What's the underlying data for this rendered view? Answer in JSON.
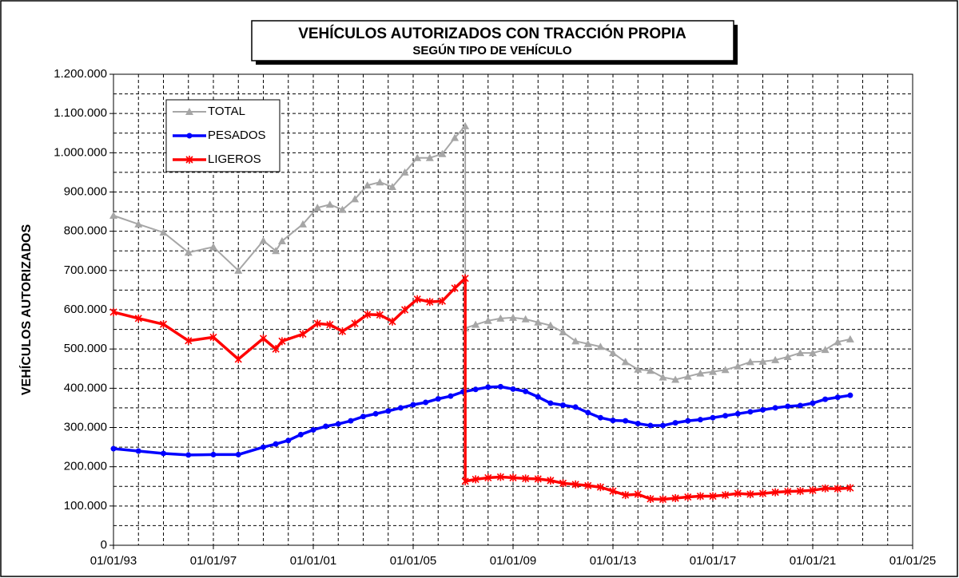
{
  "chart_data": {
    "type": "line",
    "title": "VEHÍCULOS AUTORIZADOS CON TRACCIÓN PROPIA",
    "subtitle": "SEGÚN TIPO DE VEHÍCULO",
    "y_label": "VEHÍCULOS  AUTORIZADOS",
    "xlim": [
      "01/01/93",
      "01/01/25"
    ],
    "xticks": [
      "01/01/93",
      "01/01/97",
      "01/01/01",
      "01/01/05",
      "01/01/09",
      "01/01/13",
      "01/01/17",
      "01/01/21",
      "01/01/25"
    ],
    "ylim": [
      0,
      1200000
    ],
    "yticks": [
      0,
      {
        "value": 100000,
        "label": "100.000"
      },
      {
        "value": 200000,
        "label": "200.000"
      },
      {
        "value": 300000,
        "label": "300.000"
      },
      {
        "value": 400000,
        "label": "400.000"
      },
      {
        "value": 500000,
        "label": "500.000"
      },
      {
        "value": 600000,
        "label": "600.000"
      },
      {
        "value": 700000,
        "label": "700.000"
      },
      {
        "value": 800000,
        "label": "800.000"
      },
      {
        "value": 900000,
        "label": "900.000"
      },
      {
        "value": 1000000,
        "label": "1.000.000"
      },
      {
        "value": 1100000,
        "label": "1.100.000"
      },
      {
        "value": 1200000,
        "label": "1.200.000"
      }
    ],
    "grid": true,
    "legend": "upper left",
    "series": [
      {
        "name": "TOTAL",
        "color": "#a6a6a6",
        "marker": "triangle",
        "x": [
          "01/01/93",
          "01/01/94",
          "01/01/95",
          "01/01/96",
          "01/01/97",
          "01/01/98",
          "01/01/99",
          "01/07/99",
          "01/10/99",
          "01/08/00",
          "01/03/01",
          "01/09/01",
          "01/03/02",
          "01/09/02",
          "01/03/03",
          "01/09/03",
          "01/03/04",
          "01/09/04",
          "01/03/05",
          "01/09/05",
          "01/03/06",
          "01/09/06",
          "01/02/07",
          "01/02/07",
          "01/07/07",
          "01/01/08",
          "01/07/08",
          "01/01/09",
          "01/07/09",
          "01/01/10",
          "01/07/10",
          "01/01/11",
          "01/07/11",
          "01/01/12",
          "01/07/12",
          "01/01/13",
          "01/07/13",
          "01/01/14",
          "01/07/14",
          "01/01/15",
          "01/07/15",
          "01/01/16",
          "01/07/16",
          "01/01/17",
          "01/07/17",
          "01/01/18",
          "01/07/18",
          "01/01/19",
          "01/07/19",
          "01/01/20",
          "01/07/20",
          "01/01/21",
          "01/07/21",
          "01/01/22",
          "01/07/22"
        ],
        "values": [
          840000,
          818000,
          797000,
          746000,
          760000,
          700000,
          776000,
          750000,
          775000,
          818000,
          860000,
          868000,
          855000,
          882000,
          917000,
          925000,
          913000,
          950000,
          987000,
          987000,
          997000,
          1038000,
          1068000,
          553000,
          562000,
          572000,
          578000,
          580000,
          576000,
          568000,
          560000,
          543000,
          520000,
          513000,
          506000,
          490000,
          467000,
          448000,
          445000,
          428000,
          422000,
          430000,
          438000,
          442000,
          447000,
          456000,
          467000,
          468000,
          472000,
          480000,
          490000,
          490000,
          498000,
          518000,
          525000
        ]
      },
      {
        "name": "PESADOS",
        "color": "#0000ff",
        "marker": "circle",
        "x": [
          "01/01/93",
          "01/01/94",
          "01/01/95",
          "01/01/96",
          "01/01/97",
          "01/01/98",
          "01/01/99",
          "01/07/99",
          "01/01/00",
          "01/07/00",
          "01/01/01",
          "01/07/01",
          "01/01/02",
          "01/07/02",
          "01/01/03",
          "01/07/03",
          "01/01/04",
          "01/07/04",
          "01/01/05",
          "01/07/05",
          "01/01/06",
          "01/07/06",
          "01/01/07",
          "01/07/07",
          "01/01/08",
          "01/07/08",
          "01/01/09",
          "01/07/09",
          "01/01/10",
          "01/07/10",
          "01/01/11",
          "01/07/11",
          "01/01/12",
          "01/07/12",
          "01/01/13",
          "01/07/13",
          "01/01/14",
          "01/07/14",
          "01/01/15",
          "01/07/15",
          "01/01/16",
          "01/07/16",
          "01/01/17",
          "01/07/17",
          "01/01/18",
          "01/07/18",
          "01/01/19",
          "01/07/19",
          "01/01/20",
          "01/07/20",
          "01/01/21",
          "01/07/21",
          "01/01/22",
          "01/07/22"
        ],
        "values": [
          246000,
          240000,
          234000,
          230000,
          231000,
          231000,
          250000,
          258000,
          267000,
          282000,
          294000,
          303000,
          309000,
          317000,
          328000,
          335000,
          342000,
          350000,
          358000,
          364000,
          373000,
          380000,
          391000,
          397000,
          403000,
          404000,
          398000,
          392000,
          378000,
          362000,
          357000,
          352000,
          338000,
          325000,
          318000,
          317000,
          310000,
          305000,
          305000,
          312000,
          317000,
          320000,
          325000,
          330000,
          335000,
          340000,
          345000,
          350000,
          354000,
          356000,
          362000,
          372000,
          377000,
          382000
        ]
      },
      {
        "name": "LIGEROS",
        "color": "#ff0000",
        "marker": "star",
        "x": [
          "01/01/93",
          "01/01/94",
          "01/01/95",
          "01/01/96",
          "01/01/97",
          "01/01/98",
          "01/01/99",
          "01/07/99",
          "01/10/99",
          "01/08/00",
          "01/03/01",
          "01/09/01",
          "01/03/02",
          "01/09/02",
          "01/03/03",
          "01/09/03",
          "01/03/04",
          "01/09/04",
          "01/03/05",
          "01/09/05",
          "01/03/06",
          "01/09/06",
          "01/02/07",
          "01/02/07",
          "01/07/07",
          "01/01/08",
          "01/07/08",
          "01/01/09",
          "01/07/09",
          "01/01/10",
          "01/07/10",
          "01/01/11",
          "01/07/11",
          "01/01/12",
          "01/07/12",
          "01/01/13",
          "01/07/13",
          "01/01/14",
          "01/07/14",
          "01/01/15",
          "01/07/15",
          "01/01/16",
          "01/07/16",
          "01/01/17",
          "01/07/17",
          "01/01/18",
          "01/07/18",
          "01/01/19",
          "01/07/19",
          "01/01/20",
          "01/07/20",
          "01/01/21",
          "01/07/21",
          "01/01/22",
          "01/07/22"
        ],
        "values": [
          594000,
          578000,
          563000,
          521000,
          530000,
          474000,
          527000,
          500000,
          520000,
          538000,
          565000,
          562000,
          545000,
          565000,
          588000,
          587000,
          570000,
          600000,
          627000,
          620000,
          622000,
          655000,
          680000,
          163000,
          168000,
          172000,
          174000,
          172000,
          170000,
          169000,
          165000,
          158000,
          155000,
          152000,
          148000,
          138000,
          128000,
          130000,
          118000,
          117000,
          120000,
          123000,
          125000,
          125000,
          128000,
          132000,
          130000,
          132000,
          135000,
          137000,
          138000,
          140000,
          145000,
          144000,
          146000
        ]
      }
    ]
  }
}
